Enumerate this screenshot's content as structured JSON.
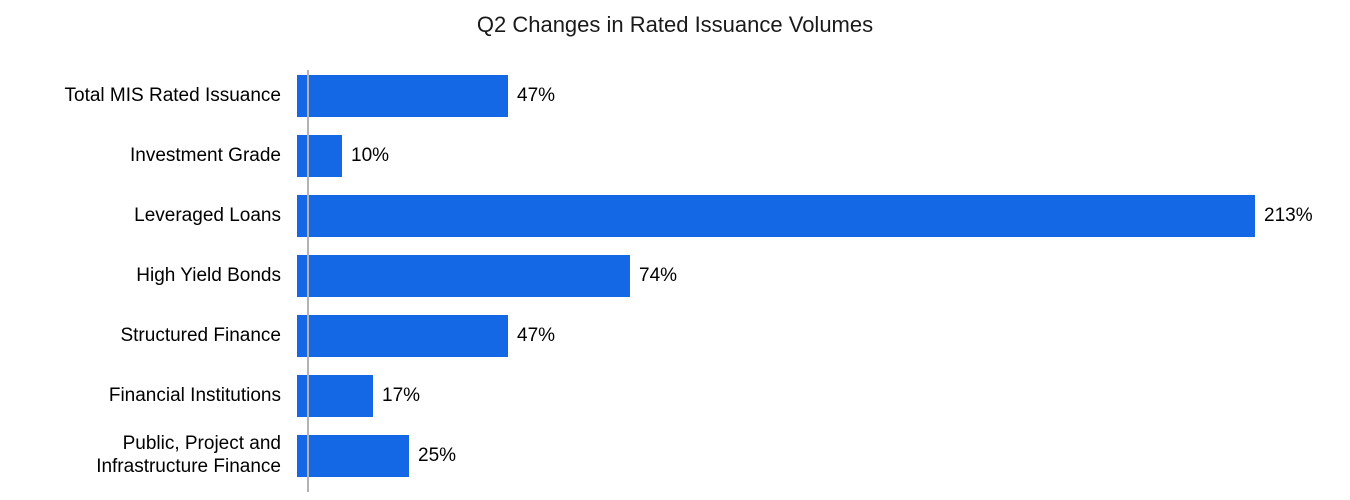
{
  "chart_data": {
    "type": "bar",
    "orientation": "horizontal",
    "title": "Q2 Changes in Rated Issuance Volumes",
    "categories": [
      "Total MIS Rated Issuance",
      "Investment Grade",
      "Leveraged Loans",
      "High Yield Bonds",
      "Structured Finance",
      "Financial Institutions",
      "Public, Project and\nInfrastructure Finance"
    ],
    "values": [
      47,
      10,
      213,
      74,
      47,
      17,
      25
    ],
    "value_labels": [
      "47%",
      "10%",
      "213%",
      "74%",
      "47%",
      "17%",
      "25%"
    ],
    "xlabel": "",
    "ylabel": "",
    "xlim": [
      0,
      220
    ],
    "grid": false,
    "legend": "none",
    "bar_color": "#1568E5",
    "axis_color": "#b3b3b3"
  }
}
